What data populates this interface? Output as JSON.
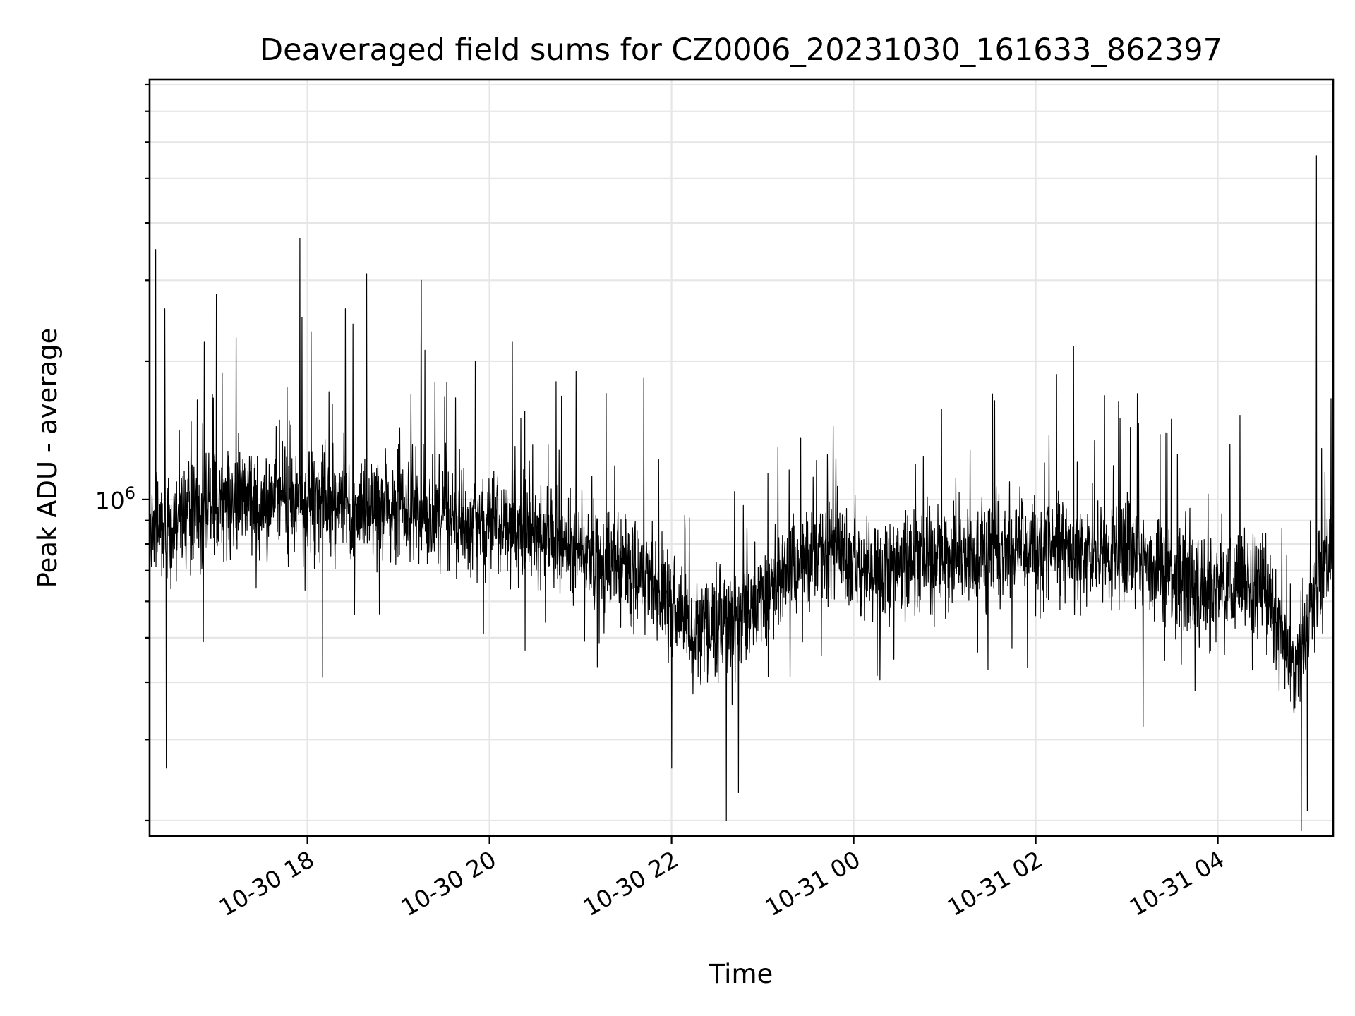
{
  "chart_data": {
    "type": "line",
    "title": "Deaveraged field sums for CZ0006_20231030_161633_862397",
    "xlabel": "Time",
    "ylabel": "Peak ADU - average",
    "y_scale": "log",
    "ylim": [
      185000,
      8200000
    ],
    "y_major_ticks": [
      {
        "value": 1000000,
        "base": "10",
        "exp": "6"
      }
    ],
    "y_minor_ticks": [
      200000,
      300000,
      400000,
      500000,
      600000,
      700000,
      800000,
      900000,
      2000000,
      3000000,
      4000000,
      5000000,
      6000000,
      7000000,
      8000000
    ],
    "xlim": [
      "2023-10-30 16:16",
      "2023-10-31 05:16"
    ],
    "x_ticks": [
      {
        "value": "2023-10-30 18:00",
        "label": "10-30 18"
      },
      {
        "value": "2023-10-30 20:00",
        "label": "10-30 20"
      },
      {
        "value": "2023-10-30 22:00",
        "label": "10-30 22"
      },
      {
        "value": "2023-10-31 00:00",
        "label": "10-31 00"
      },
      {
        "value": "2023-10-31 02:00",
        "label": "10-31 02"
      },
      {
        "value": "2023-10-31 04:00",
        "label": "10-31 04"
      }
    ],
    "grid": true,
    "legend": "none",
    "series_color": "#000000",
    "trend": [
      {
        "x": "2023-10-30 16:16",
        "y": 850000
      },
      {
        "x": "2023-10-30 16:40",
        "y": 900000
      },
      {
        "x": "2023-10-30 17:10",
        "y": 1000000
      },
      {
        "x": "2023-10-30 18:00",
        "y": 1000000
      },
      {
        "x": "2023-10-30 19:00",
        "y": 950000
      },
      {
        "x": "2023-10-30 20:00",
        "y": 880000
      },
      {
        "x": "2023-10-30 21:00",
        "y": 780000
      },
      {
        "x": "2023-10-30 21:45",
        "y": 680000
      },
      {
        "x": "2023-10-30 22:15",
        "y": 520000
      },
      {
        "x": "2023-10-30 22:45",
        "y": 540000
      },
      {
        "x": "2023-10-30 23:15",
        "y": 700000
      },
      {
        "x": "2023-10-30 23:45",
        "y": 780000
      },
      {
        "x": "2023-10-31 00:15",
        "y": 700000
      },
      {
        "x": "2023-10-31 01:00",
        "y": 760000
      },
      {
        "x": "2023-10-31 02:00",
        "y": 780000
      },
      {
        "x": "2023-10-31 03:00",
        "y": 760000
      },
      {
        "x": "2023-10-31 03:45",
        "y": 640000
      },
      {
        "x": "2023-10-31 04:30",
        "y": 660000
      },
      {
        "x": "2023-10-31 04:50",
        "y": 420000
      },
      {
        "x": "2023-10-31 05:16",
        "y": 850000
      }
    ],
    "peaks": [
      {
        "x": "2023-10-30 16:20",
        "y": 3500000
      },
      {
        "x": "2023-10-30 16:26",
        "y": 2600000
      },
      {
        "x": "2023-10-30 16:52",
        "y": 2200000
      },
      {
        "x": "2023-10-30 17:00",
        "y": 2800000
      },
      {
        "x": "2023-10-30 17:13",
        "y": 2250000
      },
      {
        "x": "2023-10-30 17:55",
        "y": 3700000
      },
      {
        "x": "2023-10-30 18:25",
        "y": 2600000
      },
      {
        "x": "2023-10-30 18:39",
        "y": 3100000
      },
      {
        "x": "2023-10-30 19:15",
        "y": 3000000
      },
      {
        "x": "2023-10-30 20:15",
        "y": 2200000
      },
      {
        "x": "2023-10-30 20:57",
        "y": 1900000
      },
      {
        "x": "2023-10-31 02:25",
        "y": 2150000
      },
      {
        "x": "2023-10-31 03:07",
        "y": 1700000
      },
      {
        "x": "2023-10-31 05:05",
        "y": 5600000
      }
    ],
    "dips": [
      {
        "x": "2023-10-30 16:27",
        "y": 260000
      },
      {
        "x": "2023-10-30 18:10",
        "y": 410000
      },
      {
        "x": "2023-10-30 22:00",
        "y": 260000
      },
      {
        "x": "2023-10-30 22:36",
        "y": 200000
      },
      {
        "x": "2023-10-30 22:44",
        "y": 230000
      },
      {
        "x": "2023-10-31 04:55",
        "y": 190000
      },
      {
        "x": "2023-10-31 04:59",
        "y": 210000
      }
    ]
  }
}
